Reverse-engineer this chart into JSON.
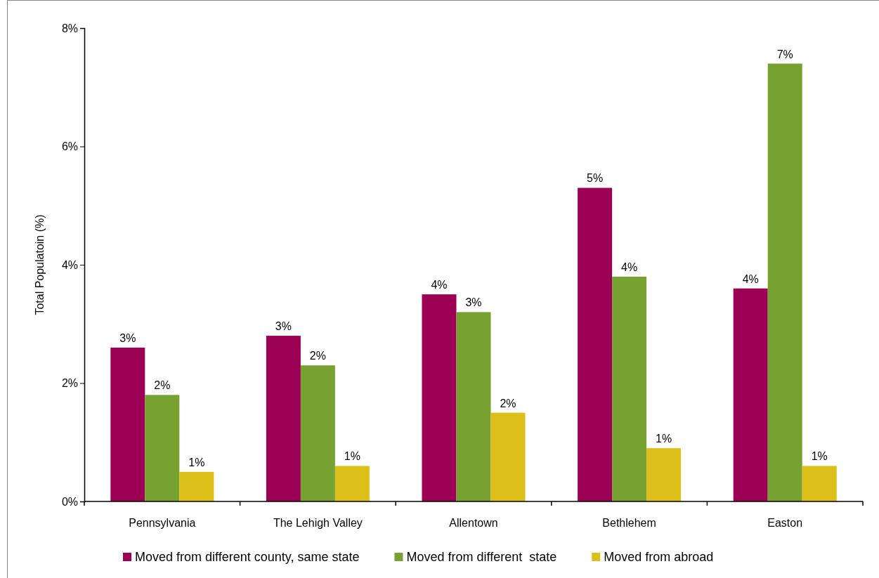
{
  "chart_data": {
    "type": "bar",
    "ylabel": "Total Populatoin (%)",
    "categories": [
      "Pennsylvania",
      "The Lehigh Valley",
      "Allentown",
      "Bethlehem",
      "Easton"
    ],
    "series": [
      {
        "name": "Moved from different county, same state",
        "color": "#9c0055",
        "values": [
          2.6,
          2.8,
          3.5,
          5.3,
          3.6
        ],
        "value_labels": [
          "3%",
          "3%",
          "4%",
          "5%",
          "4%"
        ]
      },
      {
        "name": "Moved from different  state",
        "color": "#77a232",
        "values": [
          1.8,
          2.3,
          3.2,
          3.8,
          7.4
        ],
        "value_labels": [
          "2%",
          "2%",
          "3%",
          "4%",
          "7%"
        ]
      },
      {
        "name": "Moved from abroad",
        "color": "#dcc019",
        "values": [
          0.5,
          0.6,
          1.5,
          0.9,
          0.6
        ],
        "value_labels": [
          "1%",
          "1%",
          "2%",
          "1%",
          "1%"
        ]
      }
    ],
    "ylim": [
      0,
      8
    ],
    "yticks": [
      {
        "value": 0,
        "label": "0%"
      },
      {
        "value": 2,
        "label": "2%"
      },
      {
        "value": 4,
        "label": "4%"
      },
      {
        "value": 6,
        "label": "6%"
      },
      {
        "value": 8,
        "label": "8%"
      }
    ],
    "grid": false,
    "legend": "bottom"
  }
}
